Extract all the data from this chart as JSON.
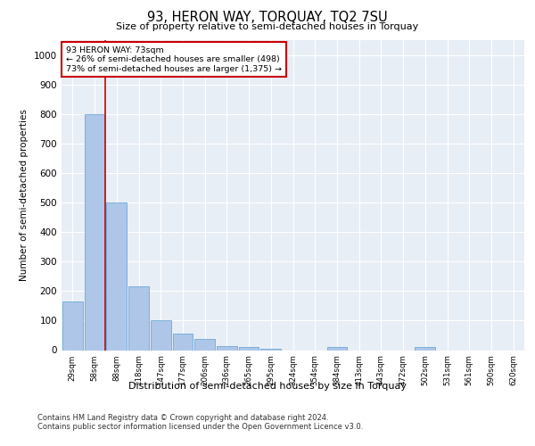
{
  "title": "93, HERON WAY, TORQUAY, TQ2 7SU",
  "subtitle": "Size of property relative to semi-detached houses in Torquay",
  "xlabel": "Distribution of semi-detached houses by size in Torquay",
  "ylabel": "Number of semi-detached properties",
  "categories": [
    "29sqm",
    "58sqm",
    "88sqm",
    "118sqm",
    "147sqm",
    "177sqm",
    "206sqm",
    "236sqm",
    "265sqm",
    "295sqm",
    "324sqm",
    "354sqm",
    "384sqm",
    "413sqm",
    "443sqm",
    "472sqm",
    "502sqm",
    "531sqm",
    "561sqm",
    "590sqm",
    "620sqm"
  ],
  "values": [
    165,
    800,
    500,
    215,
    100,
    55,
    37,
    15,
    10,
    5,
    0,
    0,
    10,
    0,
    0,
    0,
    10,
    0,
    0,
    0,
    0
  ],
  "bar_color": "#aec6e8",
  "bar_edge_color": "#5a9fd4",
  "vline_color": "#cc0000",
  "annotation_box_color": "#cc0000",
  "ylim": [
    0,
    1050
  ],
  "yticks": [
    0,
    100,
    200,
    300,
    400,
    500,
    600,
    700,
    800,
    900,
    1000
  ],
  "background_color": "#e8eef5",
  "grid_color": "#ffffff",
  "footer_line1": "Contains HM Land Registry data © Crown copyright and database right 2024.",
  "footer_line2": "Contains public sector information licensed under the Open Government Licence v3.0."
}
